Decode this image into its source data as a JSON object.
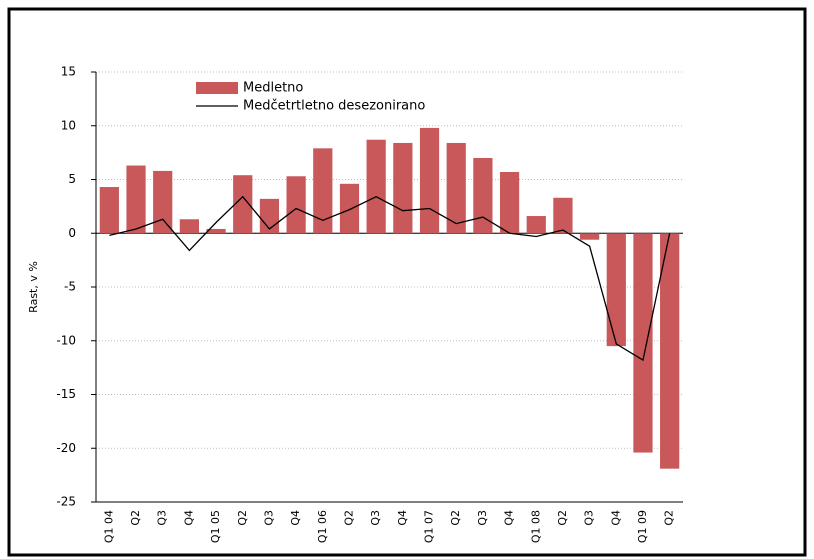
{
  "chart_data": {
    "type": "bar_line",
    "categories": [
      "Q1 04",
      "Q2",
      "Q3",
      "Q4",
      "Q1 05",
      "Q2",
      "Q3",
      "Q4",
      "Q1 06",
      "Q2",
      "Q3",
      "Q4",
      "Q1 07",
      "Q2",
      "Q3",
      "Q4",
      "Q1 08",
      "Q2",
      "Q3",
      "Q4",
      "Q1 09",
      "Q2"
    ],
    "ylabel": "Rast, v %",
    "series": [
      {
        "name": "Medletno",
        "type": "bar",
        "color": "#c8585a",
        "values": [
          4.3,
          6.3,
          5.8,
          1.3,
          0.4,
          5.4,
          3.2,
          5.3,
          7.9,
          4.6,
          8.7,
          8.4,
          9.8,
          8.4,
          7.0,
          5.7,
          1.6,
          3.3,
          -0.6,
          -10.5,
          -20.4,
          -21.9
        ]
      },
      {
        "name": "Medčetrtletno desezonirano",
        "type": "line",
        "color": "#000000",
        "values": [
          -0.2,
          0.4,
          1.3,
          -1.6,
          1.0,
          3.4,
          0.4,
          2.3,
          1.2,
          2.2,
          3.4,
          2.1,
          2.3,
          0.9,
          1.5,
          0.0,
          -0.3,
          0.3,
          -1.2,
          -10.3,
          -11.8,
          0.0
        ]
      }
    ],
    "ylim": [
      -25,
      15
    ],
    "yticks": [
      -25,
      -20,
      -15,
      -10,
      -5,
      0,
      5,
      10,
      15
    ],
    "grid": true
  }
}
